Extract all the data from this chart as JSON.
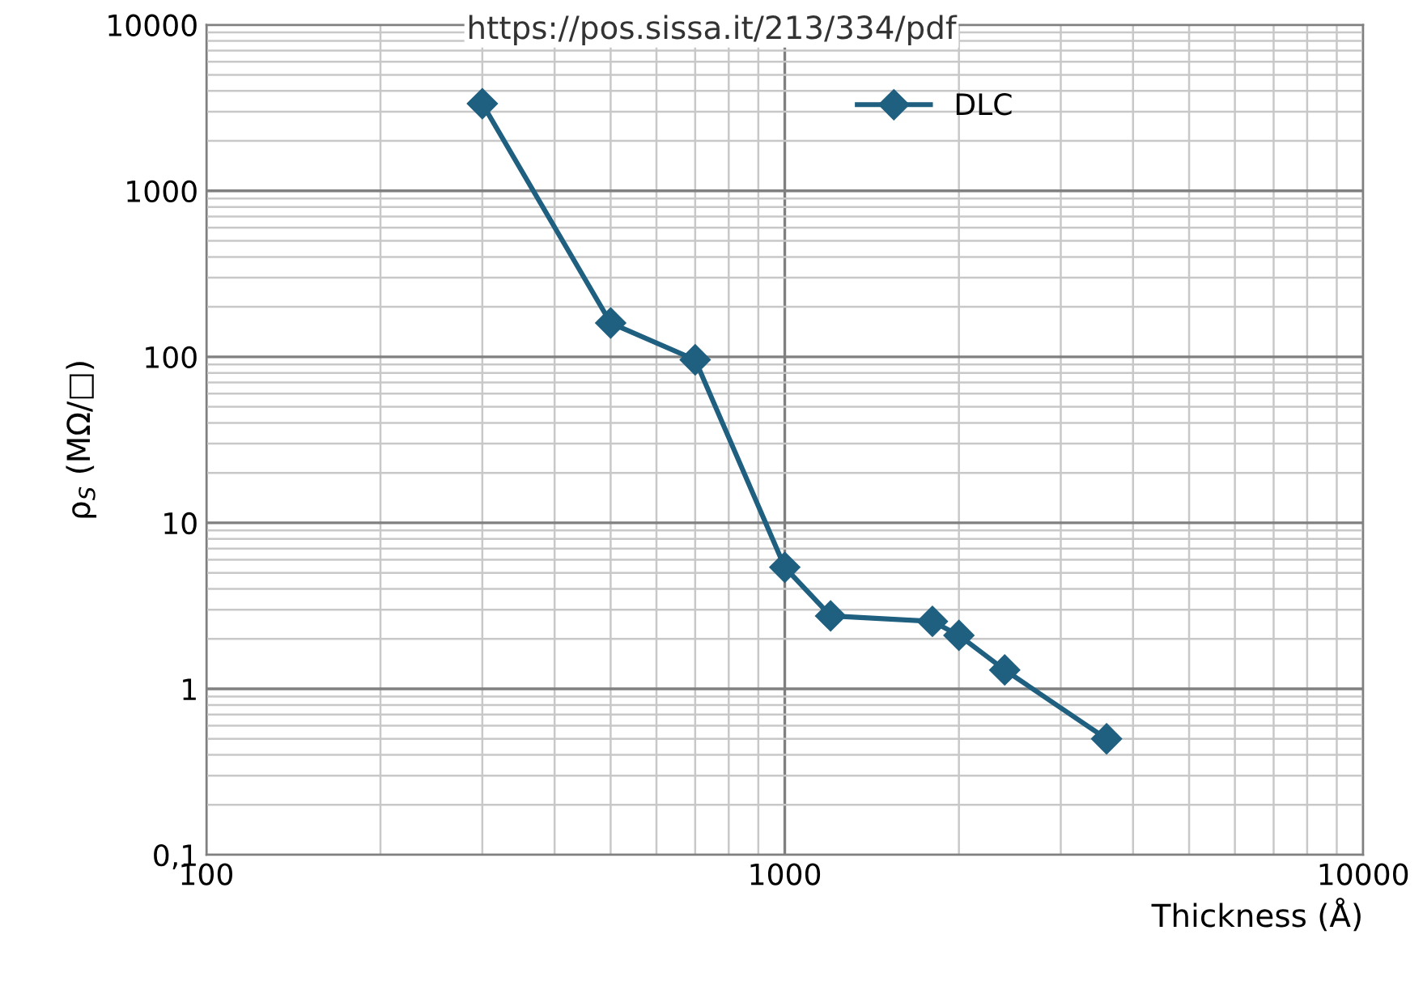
{
  "chart_data": {
    "type": "line",
    "xlabel": "Thickness (Å)",
    "ylabel": "ρ$_{S}$ (MΩ/□)",
    "annotations": [
      "https://pos.sissa.it/213/334/pdf"
    ],
    "x": [
      300,
      500,
      700,
      1000,
      1200,
      1800,
      2000,
      2400,
      3600
    ],
    "series": [
      {
        "name": "DLC",
        "color": "#1f5f7f",
        "values": [
          3350,
          160,
          96,
          5.4,
          2.75,
          2.55,
          2.1,
          1.3,
          0.5
        ]
      }
    ],
    "log": "xy",
    "xlim": [
      100,
      10000
    ],
    "ylim": [
      0.1,
      10000
    ],
    "xticks": [
      100,
      1000,
      10000
    ],
    "yticks": [
      {
        "value": 0.1,
        "label": "0,1"
      },
      1,
      10,
      100,
      1000,
      10000
    ],
    "grid": true,
    "legend": "top right",
    "marker": "diamond",
    "line_style": "solid"
  }
}
